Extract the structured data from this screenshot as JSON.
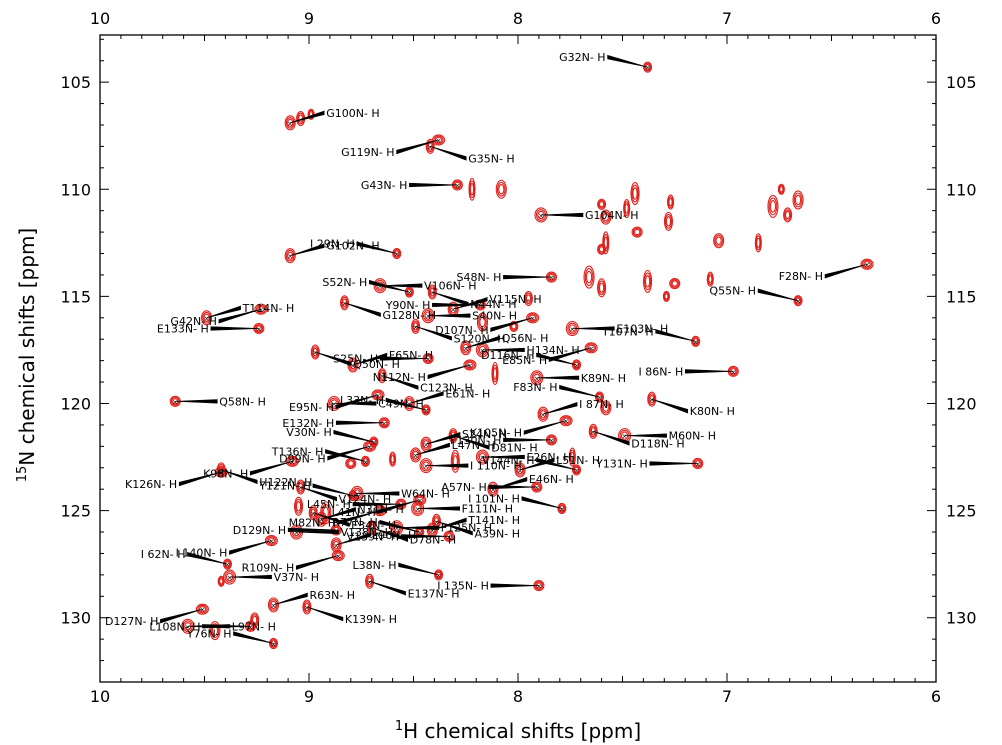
{
  "chart_data": {
    "type": "scatter",
    "title": "",
    "xlabel": {
      "sup": "1",
      "text": "H chemical shifts [ppm]"
    },
    "ylabel": {
      "sup": "15",
      "text": "N chemical shifts [ppm]"
    },
    "xlim": [
      10,
      6
    ],
    "ylim": [
      133,
      102.8
    ],
    "x_ticks": [
      "10",
      "9",
      "8",
      "7",
      "6"
    ],
    "y_ticks": [
      "105",
      "110",
      "115",
      "120",
      "125",
      "130"
    ],
    "contour_color": "#e0201b",
    "assigned_peaks": [
      {
        "label": "G32N- H",
        "x": 7.38,
        "y": 104.3
      },
      {
        "label": "G100N- H",
        "x": 9.09,
        "y": 106.9
      },
      {
        "label": "G119N- H",
        "x": 8.38,
        "y": 107.7
      },
      {
        "label": "G35N- H",
        "x": 8.42,
        "y": 108.0
      },
      {
        "label": "G43N- H",
        "x": 8.29,
        "y": 109.8
      },
      {
        "label": "G104N- H",
        "x": 7.89,
        "y": 111.2
      },
      {
        "label": "I 29N- H",
        "x": 8.58,
        "y": 113.0
      },
      {
        "label": "G102N- H",
        "x": 9.09,
        "y": 113.1
      },
      {
        "label": "F28N- H",
        "x": 6.33,
        "y": 113.5
      },
      {
        "label": "N44N- H",
        "x": 8.41,
        "y": 114.8
      },
      {
        "label": "S48N- H",
        "x": 7.84,
        "y": 114.1
      },
      {
        "label": "V106N- H",
        "x": 8.66,
        "y": 114.5
      },
      {
        "label": "S52N- H",
        "x": 8.52,
        "y": 114.8
      },
      {
        "label": "V115N- H",
        "x": 8.31,
        "y": 115.6
      },
      {
        "label": "G42N- H",
        "x": 9.23,
        "y": 115.6
      },
      {
        "label": "G128N- H",
        "x": 8.83,
        "y": 115.3
      },
      {
        "label": "Y90N- H",
        "x": 8.18,
        "y": 115.4
      },
      {
        "label": "S40N- H",
        "x": 8.43,
        "y": 115.9
      },
      {
        "label": "Q55N- H",
        "x": 6.66,
        "y": 115.2
      },
      {
        "label": "T114N- H",
        "x": 9.49,
        "y": 116.0
      },
      {
        "label": "D107N- H",
        "x": 7.93,
        "y": 116.0
      },
      {
        "label": "S120N- H",
        "x": 8.49,
        "y": 116.4
      },
      {
        "label": "E133N- H",
        "x": 9.24,
        "y": 116.5
      },
      {
        "label": "E103N- H",
        "x": 7.74,
        "y": 116.5
      },
      {
        "label": "T107N- H",
        "x": 7.15,
        "y": 117.1
      },
      {
        "label": "Q56N- H",
        "x": 8.25,
        "y": 117.4
      },
      {
        "label": "E85N- H",
        "x": 7.65,
        "y": 117.4
      },
      {
        "label": "Q50N- H",
        "x": 8.97,
        "y": 117.6
      },
      {
        "label": "S25N- H",
        "x": 8.43,
        "y": 117.9
      },
      {
        "label": "H134N- H",
        "x": 8.17,
        "y": 117.5
      },
      {
        "label": "D116N- H",
        "x": 7.72,
        "y": 118.2
      },
      {
        "label": "F65N- H",
        "x": 8.79,
        "y": 118.2
      },
      {
        "label": "N112N- H",
        "x": 8.23,
        "y": 118.2
      },
      {
        "label": "C123N- H",
        "x": 8.65,
        "y": 118.7
      },
      {
        "label": "I 86N- H",
        "x": 6.97,
        "y": 118.5
      },
      {
        "label": "K89N- H",
        "x": 7.91,
        "y": 118.8
      },
      {
        "label": "F83N- H",
        "x": 7.61,
        "y": 119.7
      },
      {
        "label": "E61N- H",
        "x": 8.52,
        "y": 120.0
      },
      {
        "label": "E95N- H",
        "x": 8.67,
        "y": 119.6
      },
      {
        "label": "K80N- H",
        "x": 7.36,
        "y": 119.8
      },
      {
        "label": "Q58N- H",
        "x": 9.64,
        "y": 119.9
      },
      {
        "label": "C49N- H",
        "x": 8.88,
        "y": 120.0
      },
      {
        "label": "L33N- H",
        "x": 8.44,
        "y": 120.3
      },
      {
        "label": "I 87N- H",
        "x": 7.88,
        "y": 120.5
      },
      {
        "label": "K105N- H",
        "x": 7.77,
        "y": 120.8
      },
      {
        "label": "D81N- H",
        "x": 8.31,
        "y": 121.5
      },
      {
        "label": "E132N- H",
        "x": 8.64,
        "y": 120.9
      },
      {
        "label": "M60N- H",
        "x": 7.49,
        "y": 121.5
      },
      {
        "label": "V30N- H",
        "x": 8.69,
        "y": 121.8
      },
      {
        "label": "S24N- H",
        "x": 8.44,
        "y": 121.9
      },
      {
        "label": "D99N- H",
        "x": 8.71,
        "y": 122.0
      },
      {
        "label": "D118N- H",
        "x": 7.64,
        "y": 121.3
      },
      {
        "label": "F130N- H",
        "x": 7.84,
        "y": 121.7
      },
      {
        "label": "E26N- H",
        "x": 8.17,
        "y": 122.5
      },
      {
        "label": "T136N- H",
        "x": 8.73,
        "y": 122.7
      },
      {
        "label": "L47N- H",
        "x": 8.49,
        "y": 122.4
      },
      {
        "label": "K98N- H",
        "x": 9.08,
        "y": 122.7
      },
      {
        "label": "H122N- H",
        "x": 9.42,
        "y": 123.1
      },
      {
        "label": "Y131N- H",
        "x": 7.14,
        "y": 122.8
      },
      {
        "label": "I 110N- H",
        "x": 8.44,
        "y": 122.9
      },
      {
        "label": "V144N- H",
        "x": 7.72,
        "y": 123.1
      },
      {
        "label": "L51N- H",
        "x": 7.99,
        "y": 123.1
      },
      {
        "label": "K126N- H",
        "x": 9.42,
        "y": 123.2
      },
      {
        "label": "V124N- H",
        "x": 9.04,
        "y": 123.9
      },
      {
        "label": "A57N- H",
        "x": 7.91,
        "y": 123.9
      },
      {
        "label": "W64N- H",
        "x": 8.77,
        "y": 124.2
      },
      {
        "label": "Y121N- H",
        "x": 8.79,
        "y": 124.3
      },
      {
        "label": "E46N- H",
        "x": 8.12,
        "y": 124.0
      },
      {
        "label": "L41N- H",
        "x": 8.47,
        "y": 124.5
      },
      {
        "label": "E34N- H",
        "x": 8.98,
        "y": 125.1
      },
      {
        "label": "L45N- H",
        "x": 8.56,
        "y": 124.7
      },
      {
        "label": "F111N- H",
        "x": 8.48,
        "y": 124.9
      },
      {
        "label": "I 101N- H",
        "x": 7.79,
        "y": 124.9
      },
      {
        "label": "N31N- H",
        "x": 8.94,
        "y": 125.4
      },
      {
        "label": "M82N- H",
        "x": 8.66,
        "y": 125.0
      },
      {
        "label": "A39N- H",
        "x": 8.39,
        "y": 125.5
      },
      {
        "label": "D129N- H",
        "x": 8.87,
        "y": 125.9
      },
      {
        "label": "V138N- H",
        "x": 9.06,
        "y": 126.0
      },
      {
        "label": "R77N- H",
        "x": 8.47,
        "y": 126.0
      },
      {
        "label": "T141N- H",
        "x": 8.41,
        "y": 125.9
      },
      {
        "label": "I 140N- H",
        "x": 9.18,
        "y": 126.4
      },
      {
        "label": "D78N- H",
        "x": 8.7,
        "y": 125.8
      },
      {
        "label": "V139N- H",
        "x": 8.33,
        "y": 126.2
      },
      {
        "label": "F125N- H",
        "x": 8.58,
        "y": 125.8
      },
      {
        "label": "I 62N- H",
        "x": 9.39,
        "y": 127.5
      },
      {
        "label": "L96N- H",
        "x": 8.87,
        "y": 126.6
      },
      {
        "label": "R109N- H",
        "x": 8.86,
        "y": 127.1
      },
      {
        "label": "E137N- H",
        "x": 8.71,
        "y": 128.3
      },
      {
        "label": "I 135N- H",
        "x": 7.9,
        "y": 128.5
      },
      {
        "label": "V37N- H",
        "x": 9.38,
        "y": 128.1
      },
      {
        "label": "L38N- H",
        "x": 8.38,
        "y": 128.0
      },
      {
        "label": "R63N- H",
        "x": 9.17,
        "y": 129.4
      },
      {
        "label": "D127N- H",
        "x": 9.51,
        "y": 129.6
      },
      {
        "label": "K139N- H",
        "x": 9.01,
        "y": 129.5
      },
      {
        "label": "L108N- H",
        "x": 9.28,
        "y": 130.4
      },
      {
        "label": "L97N- H",
        "x": 9.58,
        "y": 130.4
      },
      {
        "label": "Y76N- H",
        "x": 9.17,
        "y": 131.2
      }
    ],
    "unassigned_peaks": [
      {
        "x": 8.99,
        "y": 106.5
      },
      {
        "x": 9.04,
        "y": 106.7
      },
      {
        "x": 8.08,
        "y": 110.0
      },
      {
        "x": 8.22,
        "y": 110.0
      },
      {
        "x": 7.6,
        "y": 110.7
      },
      {
        "x": 7.58,
        "y": 111.3
      },
      {
        "x": 7.48,
        "y": 110.9
      },
      {
        "x": 7.44,
        "y": 110.2
      },
      {
        "x": 7.43,
        "y": 112.0
      },
      {
        "x": 7.27,
        "y": 110.6
      },
      {
        "x": 7.28,
        "y": 111.5
      },
      {
        "x": 6.78,
        "y": 110.8
      },
      {
        "x": 6.74,
        "y": 110.0
      },
      {
        "x": 6.71,
        "y": 111.2
      },
      {
        "x": 6.66,
        "y": 110.5
      },
      {
        "x": 7.58,
        "y": 112.5
      },
      {
        "x": 7.6,
        "y": 112.8
      },
      {
        "x": 7.04,
        "y": 112.4
      },
      {
        "x": 6.85,
        "y": 112.5
      },
      {
        "x": 7.38,
        "y": 114.3
      },
      {
        "x": 7.25,
        "y": 114.4
      },
      {
        "x": 7.08,
        "y": 114.2
      },
      {
        "x": 7.6,
        "y": 114.6
      },
      {
        "x": 7.66,
        "y": 114.1
      },
      {
        "x": 7.29,
        "y": 115.0
      },
      {
        "x": 7.95,
        "y": 115.1
      },
      {
        "x": 8.17,
        "y": 116.2
      },
      {
        "x": 8.11,
        "y": 118.6
      },
      {
        "x": 8.02,
        "y": 116.4
      },
      {
        "x": 7.58,
        "y": 120.2
      },
      {
        "x": 7.74,
        "y": 122.5
      },
      {
        "x": 8.3,
        "y": 122.7
      },
      {
        "x": 8.8,
        "y": 122.8
      },
      {
        "x": 8.6,
        "y": 122.6
      },
      {
        "x": 9.05,
        "y": 124.8
      },
      {
        "x": 8.92,
        "y": 125.1
      },
      {
        "x": 9.42,
        "y": 128.3
      },
      {
        "x": 9.26,
        "y": 130.1
      },
      {
        "x": 9.45,
        "y": 130.6
      }
    ]
  }
}
